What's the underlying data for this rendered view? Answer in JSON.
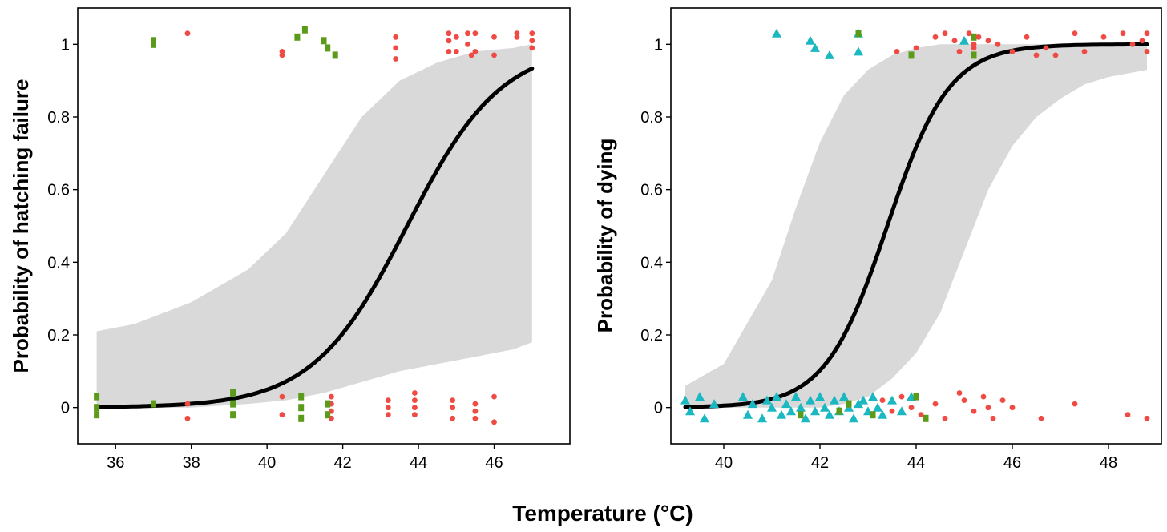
{
  "xlabel": "Temperature (°C)",
  "colors": {
    "red": "#f04a45",
    "green": "#5c9a1a",
    "cyan": "#1bb8c2",
    "band": "#d9d9d9",
    "curve": "#000000"
  },
  "chart_data": [
    {
      "type": "scatter",
      "ylabel": "Probability of hatching failure",
      "xlim": [
        35,
        48
      ],
      "ylim": [
        -0.1,
        1.1
      ],
      "xticks": [
        36,
        38,
        40,
        42,
        44,
        46
      ],
      "yticks": [
        0.0,
        0.2,
        0.4,
        0.6,
        0.8,
        1.0
      ],
      "fit": {
        "kind": "logistic",
        "x_range": [
          35.5,
          47.0
        ],
        "midpoint": 43.7,
        "slope": 0.8
      },
      "confidence_band": {
        "x": [
          35.5,
          36.5,
          38.0,
          39.5,
          40.5,
          41.5,
          42.5,
          43.5,
          44.5,
          45.5,
          46.5,
          47.0
        ],
        "lower": [
          0.0,
          0.0,
          0.0,
          0.01,
          0.02,
          0.04,
          0.07,
          0.1,
          0.12,
          0.14,
          0.16,
          0.18
        ],
        "upper": [
          0.21,
          0.23,
          0.29,
          0.38,
          0.48,
          0.64,
          0.8,
          0.9,
          0.95,
          0.98,
          0.99,
          1.0
        ]
      },
      "series": [
        {
          "color": "red",
          "marker": "circle",
          "points": [
            [
              37.9,
              1.03
            ],
            [
              40.4,
              0.98
            ],
            [
              40.4,
              0.97
            ],
            [
              43.4,
              1.02
            ],
            [
              43.4,
              0.99
            ],
            [
              43.4,
              0.96
            ],
            [
              44.8,
              1.03
            ],
            [
              44.8,
              1.01
            ],
            [
              44.8,
              0.98
            ],
            [
              45.0,
              1.02
            ],
            [
              45.0,
              0.98
            ],
            [
              45.3,
              1.03
            ],
            [
              45.3,
              1.0
            ],
            [
              45.4,
              0.97
            ],
            [
              45.5,
              1.03
            ],
            [
              45.5,
              0.98
            ],
            [
              46.0,
              1.02
            ],
            [
              46.0,
              0.97
            ],
            [
              46.6,
              1.03
            ],
            [
              46.6,
              1.02
            ],
            [
              47.0,
              1.03
            ],
            [
              47.0,
              1.01
            ],
            [
              47.0,
              0.99
            ],
            [
              37.9,
              0.01
            ],
            [
              37.9,
              -0.03
            ],
            [
              40.4,
              0.03
            ],
            [
              40.4,
              -0.02
            ],
            [
              41.7,
              0.03
            ],
            [
              41.7,
              0.01
            ],
            [
              41.7,
              -0.01
            ],
            [
              41.7,
              -0.03
            ],
            [
              43.2,
              0.02
            ],
            [
              43.2,
              0.0
            ],
            [
              43.2,
              -0.02
            ],
            [
              43.9,
              0.04
            ],
            [
              43.9,
              0.02
            ],
            [
              43.9,
              0.0
            ],
            [
              43.9,
              -0.02
            ],
            [
              44.9,
              0.02
            ],
            [
              44.9,
              0.0
            ],
            [
              44.9,
              -0.03
            ],
            [
              45.5,
              0.01
            ],
            [
              45.5,
              -0.01
            ],
            [
              45.5,
              -0.03
            ],
            [
              46.0,
              0.03
            ],
            [
              46.0,
              -0.04
            ]
          ]
        },
        {
          "color": "green",
          "marker": "square",
          "points": [
            [
              37.0,
              1.0
            ],
            [
              37.0,
              1.01
            ],
            [
              40.8,
              1.02
            ],
            [
              41.0,
              1.04
            ],
            [
              41.5,
              1.01
            ],
            [
              41.6,
              0.99
            ],
            [
              41.8,
              0.97
            ],
            [
              35.5,
              0.03
            ],
            [
              35.5,
              0.0
            ],
            [
              35.5,
              -0.02
            ],
            [
              37.0,
              0.01
            ],
            [
              39.1,
              0.04
            ],
            [
              39.1,
              0.01
            ],
            [
              39.1,
              -0.02
            ],
            [
              40.9,
              0.03
            ],
            [
              40.9,
              0.0
            ],
            [
              40.9,
              -0.03
            ],
            [
              41.6,
              0.01
            ],
            [
              41.6,
              -0.02
            ]
          ]
        }
      ]
    },
    {
      "type": "scatter",
      "ylabel": "Probability of dying",
      "xlim": [
        38.9,
        49.1
      ],
      "ylim": [
        -0.1,
        1.1
      ],
      "xticks": [
        40,
        42,
        44,
        46,
        48
      ],
      "yticks": [
        0.0,
        0.2,
        0.4,
        0.6,
        0.8,
        1.0
      ],
      "fit": {
        "kind": "logistic",
        "x_range": [
          39.2,
          48.8
        ],
        "midpoint": 43.4,
        "slope": 1.55
      },
      "confidence_band": {
        "x": [
          39.2,
          40.0,
          41.0,
          41.5,
          42.0,
          42.5,
          43.0,
          43.5,
          44.0,
          44.5,
          45.0,
          45.5,
          46.0,
          46.5,
          47.0,
          47.5,
          48.0,
          48.8
        ],
        "lower": [
          0.0,
          0.0,
          0.0,
          0.0,
          0.0,
          0.01,
          0.03,
          0.08,
          0.15,
          0.26,
          0.43,
          0.6,
          0.72,
          0.8,
          0.85,
          0.89,
          0.91,
          0.93
        ],
        "upper": [
          0.06,
          0.12,
          0.35,
          0.55,
          0.73,
          0.86,
          0.93,
          0.97,
          0.99,
          1.0,
          1.0,
          1.0,
          1.0,
          1.0,
          1.0,
          1.0,
          1.0,
          1.0
        ]
      },
      "series": [
        {
          "color": "cyan",
          "marker": "triangle",
          "points": [
            [
              41.1,
              1.03
            ],
            [
              41.8,
              1.01
            ],
            [
              41.9,
              0.99
            ],
            [
              42.2,
              0.97
            ],
            [
              42.8,
              1.03
            ],
            [
              42.8,
              0.98
            ],
            [
              45.0,
              1.01
            ],
            [
              39.2,
              0.02
            ],
            [
              39.3,
              -0.01
            ],
            [
              39.5,
              0.03
            ],
            [
              39.6,
              -0.03
            ],
            [
              39.8,
              0.01
            ],
            [
              40.4,
              0.03
            ],
            [
              40.5,
              -0.02
            ],
            [
              40.6,
              0.01
            ],
            [
              40.8,
              -0.03
            ],
            [
              40.9,
              0.02
            ],
            [
              41.0,
              0.0
            ],
            [
              41.1,
              0.03
            ],
            [
              41.2,
              -0.02
            ],
            [
              41.3,
              0.01
            ],
            [
              41.4,
              -0.01
            ],
            [
              41.5,
              0.03
            ],
            [
              41.6,
              0.0
            ],
            [
              41.7,
              -0.03
            ],
            [
              41.8,
              0.02
            ],
            [
              41.9,
              -0.01
            ],
            [
              42.0,
              0.03
            ],
            [
              42.1,
              0.0
            ],
            [
              42.2,
              -0.02
            ],
            [
              42.3,
              0.02
            ],
            [
              42.4,
              -0.01
            ],
            [
              42.5,
              0.03
            ],
            [
              42.6,
              0.0
            ],
            [
              42.7,
              -0.03
            ],
            [
              42.8,
              0.01
            ],
            [
              42.9,
              0.02
            ],
            [
              43.0,
              -0.01
            ],
            [
              43.1,
              0.03
            ],
            [
              43.2,
              0.0
            ],
            [
              43.3,
              -0.02
            ],
            [
              43.5,
              0.02
            ],
            [
              43.7,
              -0.01
            ],
            [
              43.9,
              0.03
            ]
          ]
        },
        {
          "color": "green",
          "marker": "square",
          "points": [
            [
              42.8,
              1.03
            ],
            [
              43.9,
              0.97
            ],
            [
              45.2,
              1.02
            ],
            [
              45.2,
              0.97
            ],
            [
              41.6,
              -0.02
            ],
            [
              42.4,
              -0.01
            ],
            [
              42.6,
              0.01
            ],
            [
              43.1,
              -0.02
            ],
            [
              44.0,
              0.03
            ],
            [
              44.2,
              -0.03
            ]
          ]
        },
        {
          "color": "red",
          "marker": "circle",
          "points": [
            [
              43.6,
              0.98
            ],
            [
              44.0,
              0.99
            ],
            [
              44.4,
              1.02
            ],
            [
              44.6,
              1.03
            ],
            [
              44.8,
              1.01
            ],
            [
              44.9,
              0.98
            ],
            [
              45.1,
              1.03
            ],
            [
              45.2,
              1.0
            ],
            [
              45.2,
              0.99
            ],
            [
              45.3,
              1.02
            ],
            [
              45.5,
              1.01
            ],
            [
              45.7,
              1.0
            ],
            [
              46.0,
              0.98
            ],
            [
              46.3,
              1.02
            ],
            [
              46.5,
              0.97
            ],
            [
              46.7,
              0.99
            ],
            [
              46.9,
              0.97
            ],
            [
              47.3,
              1.03
            ],
            [
              47.5,
              0.98
            ],
            [
              47.9,
              1.02
            ],
            [
              48.3,
              1.03
            ],
            [
              48.5,
              1.0
            ],
            [
              48.7,
              1.01
            ],
            [
              48.8,
              0.98
            ],
            [
              48.8,
              1.03
            ],
            [
              43.3,
              0.02
            ],
            [
              43.5,
              -0.01
            ],
            [
              43.7,
              0.03
            ],
            [
              43.9,
              0.0
            ],
            [
              44.1,
              -0.02
            ],
            [
              44.4,
              0.01
            ],
            [
              44.6,
              -0.03
            ],
            [
              44.9,
              0.04
            ],
            [
              45.0,
              0.02
            ],
            [
              45.2,
              -0.01
            ],
            [
              45.4,
              0.03
            ],
            [
              45.5,
              0.0
            ],
            [
              45.6,
              -0.03
            ],
            [
              45.8,
              0.02
            ],
            [
              46.0,
              0.0
            ],
            [
              46.6,
              -0.03
            ],
            [
              47.3,
              0.01
            ],
            [
              48.4,
              -0.02
            ],
            [
              48.8,
              -0.03
            ]
          ]
        }
      ]
    }
  ]
}
